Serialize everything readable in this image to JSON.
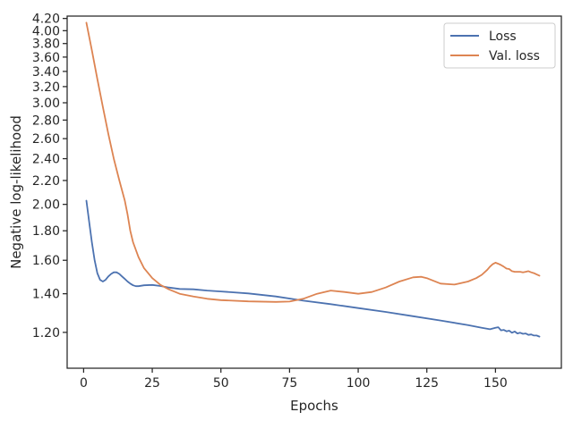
{
  "chart_data": {
    "type": "line",
    "xlabel": "Epochs",
    "ylabel": "Negative log-likelihood",
    "y_scale": "log",
    "xlim": [
      -6,
      174
    ],
    "ylim": [
      1.04,
      4.24
    ],
    "xticks": [
      0,
      25,
      50,
      75,
      100,
      125,
      150
    ],
    "yticks": [
      1.2,
      1.4,
      1.6,
      1.8,
      2.0,
      2.2,
      2.4,
      2.6,
      2.8,
      3.0,
      3.2,
      3.4,
      3.6,
      3.8,
      4.0,
      4.2
    ],
    "ytick_labels": [
      "1.20",
      "1.40",
      "1.60",
      "1.80",
      "2.00",
      "2.20",
      "2.40",
      "2.60",
      "2.80",
      "3.00",
      "3.20",
      "3.40",
      "3.60",
      "3.80",
      "4.00",
      "4.20"
    ],
    "grid": false,
    "legend": {
      "position": "top-right"
    },
    "series": [
      {
        "name": "Loss",
        "color": "#4c72b0",
        "x": [
          1,
          2,
          3,
          4,
          5,
          6,
          7,
          8,
          9,
          10,
          11,
          12,
          13,
          14,
          15,
          16,
          17,
          18,
          19,
          20,
          22,
          25,
          28,
          31,
          35,
          40,
          45,
          50,
          60,
          70,
          80,
          90,
          100,
          110,
          120,
          130,
          140,
          145,
          148,
          150,
          151,
          152,
          153,
          154,
          155,
          156,
          157,
          158,
          159,
          160,
          161,
          162,
          163,
          164,
          165,
          166
        ],
        "y": [
          2.03,
          1.87,
          1.72,
          1.6,
          1.52,
          1.48,
          1.47,
          1.48,
          1.5,
          1.515,
          1.525,
          1.525,
          1.515,
          1.5,
          1.485,
          1.47,
          1.458,
          1.448,
          1.443,
          1.443,
          1.448,
          1.45,
          1.444,
          1.435,
          1.427,
          1.425,
          1.418,
          1.413,
          1.402,
          1.385,
          1.362,
          1.343,
          1.322,
          1.302,
          1.28,
          1.258,
          1.235,
          1.222,
          1.215,
          1.222,
          1.225,
          1.21,
          1.212,
          1.205,
          1.208,
          1.198,
          1.204,
          1.195,
          1.198,
          1.193,
          1.195,
          1.188,
          1.19,
          1.185,
          1.185,
          1.18
        ]
      },
      {
        "name": "Val. loss",
        "color": "#dd8452",
        "x": [
          1,
          3,
          5,
          7,
          9,
          11,
          13,
          15,
          16,
          17,
          18,
          20,
          22,
          25,
          28,
          31,
          35,
          40,
          45,
          50,
          60,
          70,
          75,
          80,
          85,
          90,
          95,
          100,
          105,
          110,
          115,
          120,
          123,
          125,
          130,
          135,
          140,
          143,
          145,
          147,
          148,
          149,
          150,
          151,
          152,
          153,
          154,
          155,
          156,
          157,
          158,
          159,
          160,
          161,
          162,
          163,
          164,
          165,
          166
        ],
        "y": [
          4.13,
          3.7,
          3.3,
          2.95,
          2.65,
          2.4,
          2.2,
          2.03,
          1.92,
          1.8,
          1.72,
          1.62,
          1.55,
          1.49,
          1.45,
          1.425,
          1.4,
          1.385,
          1.372,
          1.365,
          1.358,
          1.355,
          1.357,
          1.372,
          1.4,
          1.418,
          1.41,
          1.4,
          1.41,
          1.435,
          1.47,
          1.495,
          1.498,
          1.49,
          1.458,
          1.452,
          1.47,
          1.49,
          1.51,
          1.54,
          1.56,
          1.575,
          1.585,
          1.578,
          1.57,
          1.56,
          1.548,
          1.545,
          1.532,
          1.528,
          1.528,
          1.528,
          1.525,
          1.528,
          1.532,
          1.525,
          1.52,
          1.512,
          1.505
        ]
      }
    ]
  }
}
